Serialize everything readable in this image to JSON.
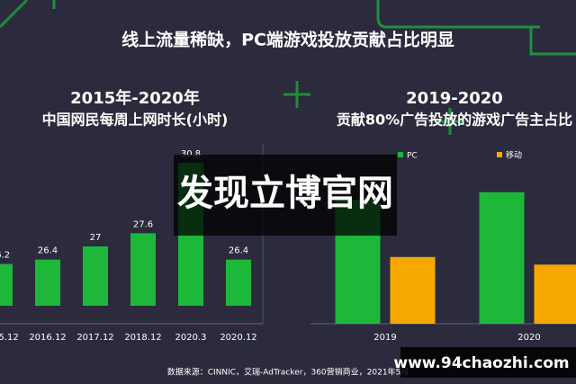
{
  "header": {
    "title": "线上流量稀缺，PC端游戏投放贡献占比明显"
  },
  "chart_data": [
    {
      "type": "bar",
      "title": "2015年-2020年",
      "subtitle": "中国网民每周上网时长(小时)",
      "categories": [
        "2015.12",
        "2016.12",
        "2017.12",
        "2018.12",
        "2020.3",
        "2020.12"
      ],
      "values": [
        26.2,
        26.4,
        27,
        27.6,
        30.8,
        26.4
      ],
      "color": "#1db83a",
      "ylim": [
        24.3,
        31.5
      ]
    },
    {
      "type": "grouped_bar",
      "title": "2019-2020",
      "subtitle": "贡献80%广告投放的游戏广告主占比",
      "categories": [
        "2019",
        "2020"
      ],
      "series": [
        {
          "name": "PC",
          "color": "#1db83a",
          "values": [
            65,
            69
          ]
        },
        {
          "name": "移动",
          "color": "#f5a800",
          "values": [
            35,
            31
          ]
        }
      ],
      "ylim": [
        0,
        100
      ]
    }
  ],
  "source": "数据来源：CINNIC，艾瑞-AdTracker，360营销商业，2021年5月",
  "watermark": "发现立博官网",
  "site": "www.94chaozhi.com"
}
